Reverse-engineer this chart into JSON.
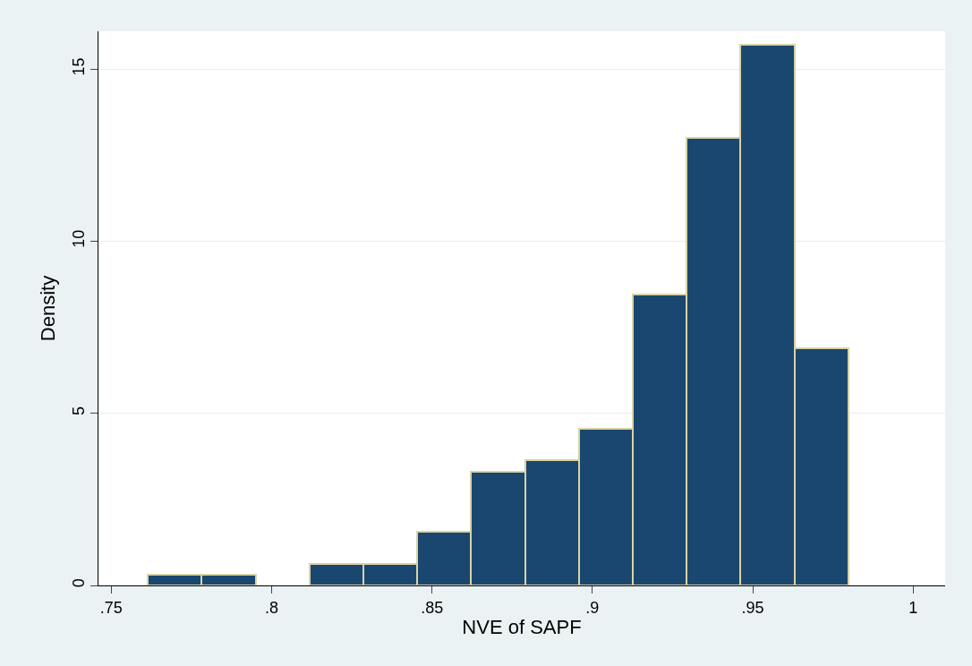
{
  "chart_data": {
    "type": "histogram",
    "xlabel": "NVE of SAPF",
    "ylabel": "Density",
    "bins": [
      0.7614,
      0.7782,
      0.795,
      0.8118,
      0.8286,
      0.8454,
      0.8622,
      0.879,
      0.8958,
      0.9126,
      0.9294,
      0.9462,
      0.963,
      0.9798
    ],
    "values": [
      0.32,
      0.32,
      0,
      0.63,
      0.63,
      1.55,
      3.3,
      3.65,
      4.55,
      8.45,
      13.0,
      15.7,
      6.9
    ],
    "color": "#1a476f",
    "xlim": [
      0.746,
      1.01
    ],
    "ylim": [
      0,
      16.1
    ],
    "xticks": [
      {
        "value": 0.75,
        "label": ".75"
      },
      {
        "value": 0.8,
        "label": ".8"
      },
      {
        "value": 0.85,
        "label": ".85"
      },
      {
        "value": 0.9,
        "label": ".9"
      },
      {
        "value": 0.95,
        "label": ".95"
      },
      {
        "value": 1,
        "label": "1"
      }
    ],
    "yticks": [
      0,
      5,
      10,
      15
    ],
    "grid": "y"
  }
}
